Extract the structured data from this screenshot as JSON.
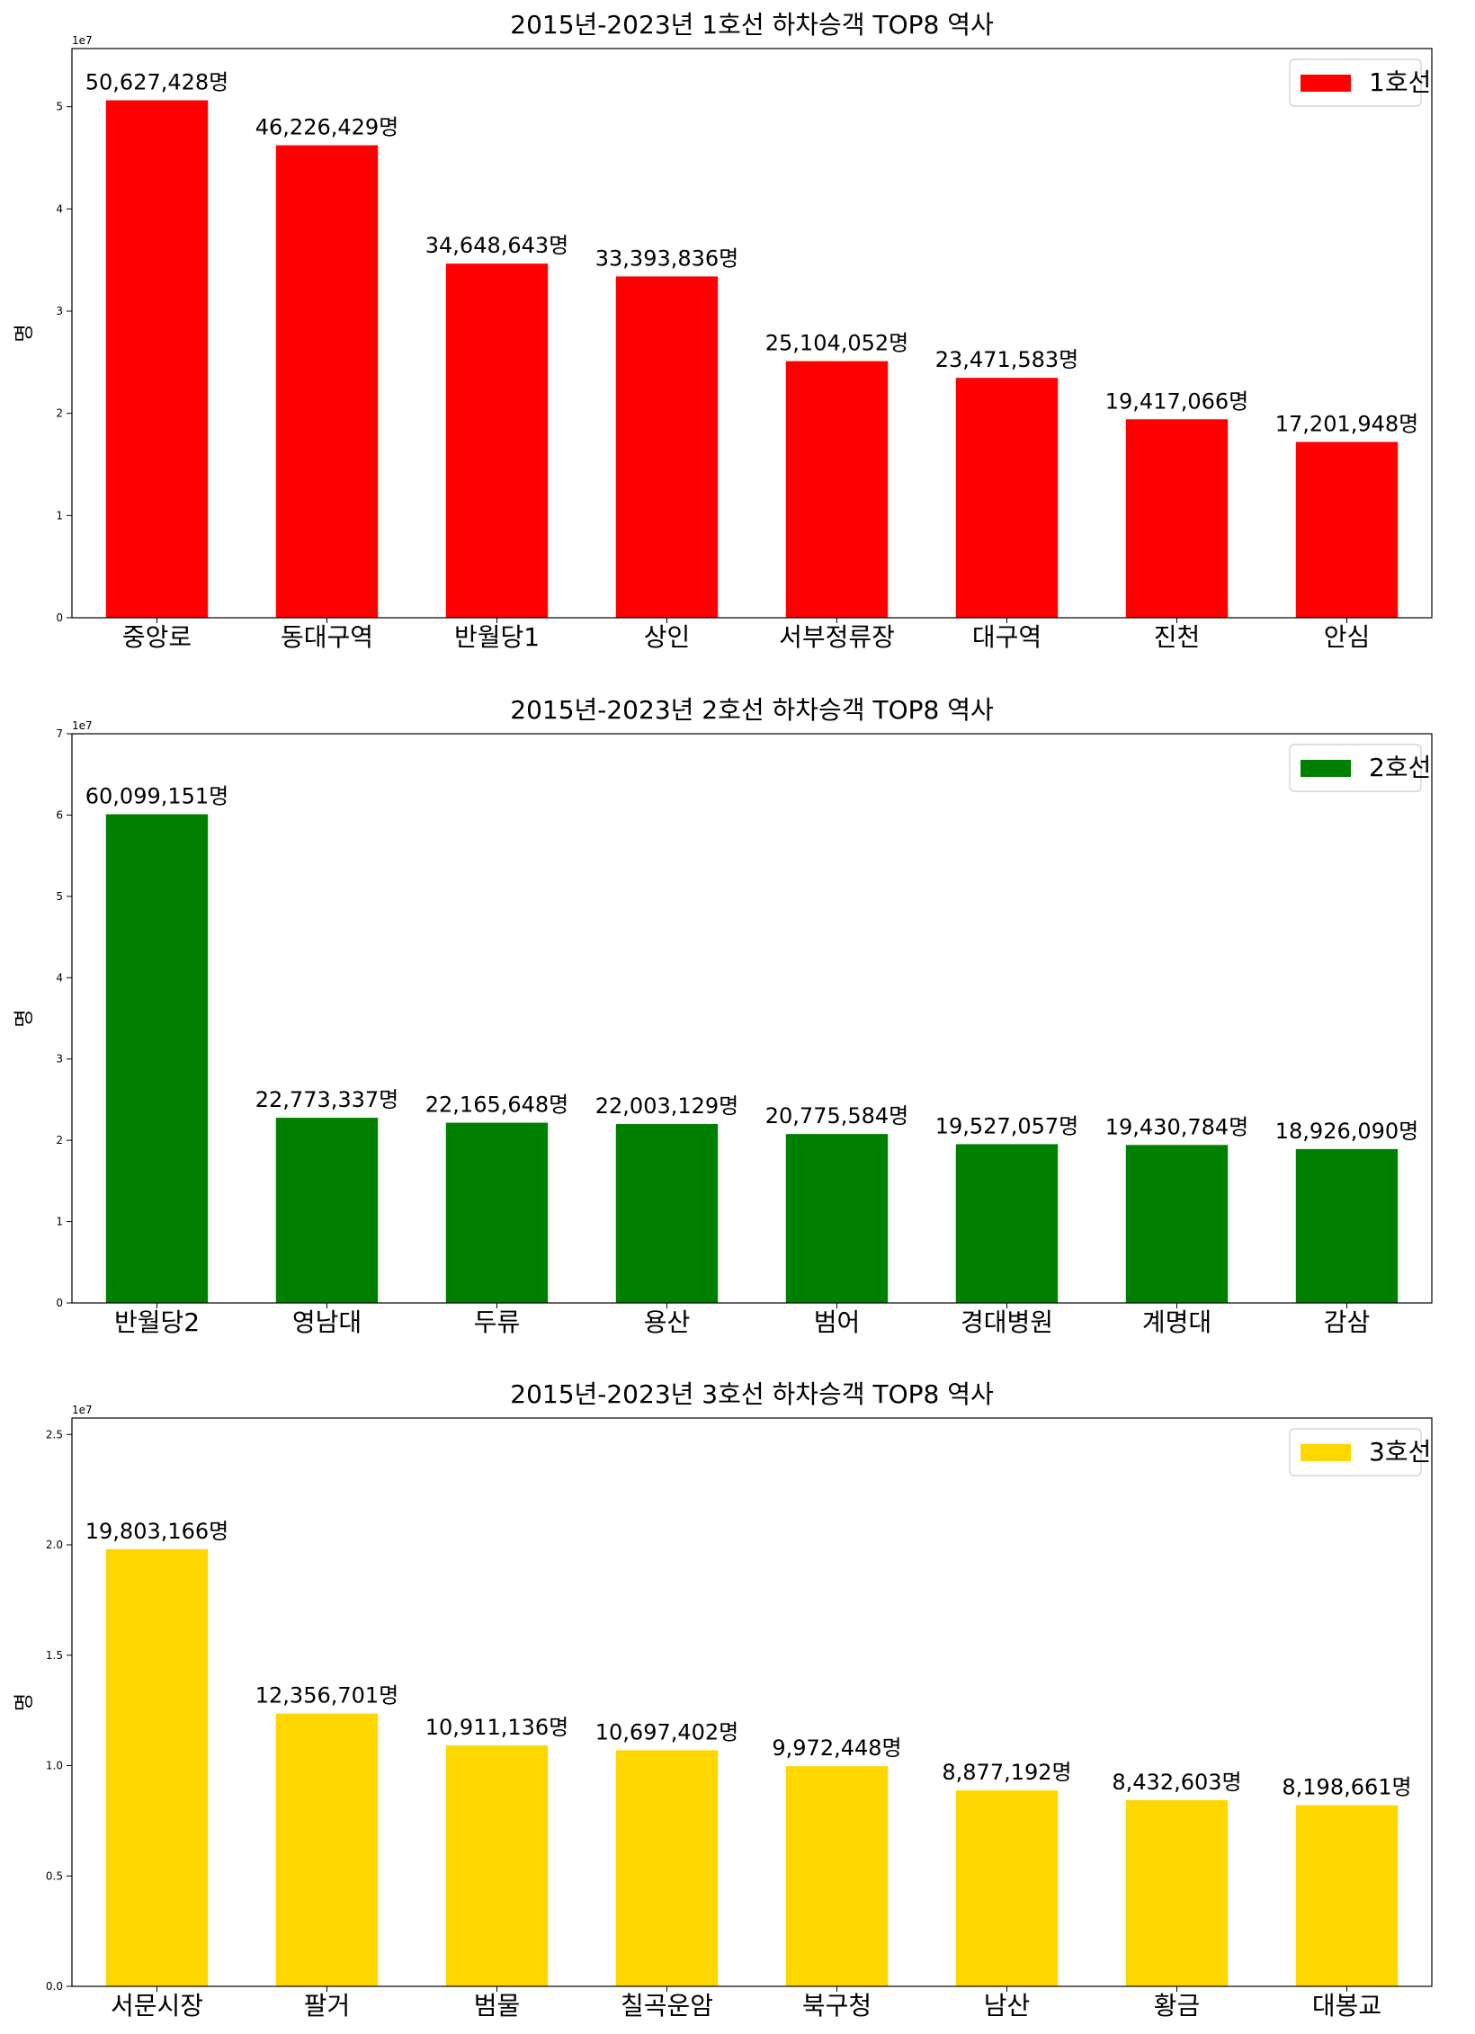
{
  "chart_data": [
    {
      "type": "bar",
      "title": "2015년-2023년 1호선 하차승객 TOP8 역사",
      "xlabel": "",
      "ylabel": "명",
      "offset_label": "1e7",
      "categories": [
        "중앙로",
        "동대구역",
        "반월당1",
        "상인",
        "서부정류장",
        "대구역",
        "진천",
        "안심"
      ],
      "series": [
        {
          "name": "1호선",
          "color": "#ff0000",
          "values": [
            50627428,
            46226429,
            34648643,
            33393836,
            25104052,
            23471583,
            19417066,
            17201948
          ]
        }
      ],
      "value_labels": [
        "50,627,428명",
        "46,226,429명",
        "34,648,643명",
        "33,393,836명",
        "25,104,052명",
        "23,471,583명",
        "19,417,066명",
        "17,201,948명"
      ],
      "ylim": [
        0,
        55690171
      ],
      "yticks": [
        0,
        10000000,
        20000000,
        30000000,
        40000000,
        50000000
      ],
      "ytick_labels": [
        "0",
        "1",
        "2",
        "3",
        "4",
        "5"
      ],
      "legend": "top-right",
      "grid": false
    },
    {
      "type": "bar",
      "title": "2015년-2023년 2호선 하차승객 TOP8 역사",
      "xlabel": "",
      "ylabel": "명",
      "offset_label": "1e7",
      "categories": [
        "반월당2",
        "영남대",
        "두류",
        "용산",
        "범어",
        "경대병원",
        "계명대",
        "감삼"
      ],
      "series": [
        {
          "name": "2호선",
          "color": "#008000",
          "values": [
            60099151,
            22773337,
            22165648,
            22003129,
            20775584,
            19527057,
            19430784,
            18926090
          ]
        }
      ],
      "value_labels": [
        "60,099,151명",
        "22,773,337명",
        "22,165,648명",
        "22,003,129명",
        "20,775,584명",
        "19,527,057명",
        "19,430,784명",
        "18,926,090명"
      ],
      "ylim": [
        0,
        70000000
      ],
      "yticks": [
        0,
        10000000,
        20000000,
        30000000,
        40000000,
        50000000,
        60000000,
        70000000
      ],
      "ytick_labels": [
        "0",
        "1",
        "2",
        "3",
        "4",
        "5",
        "6",
        "7"
      ],
      "legend": "top-right",
      "grid": false
    },
    {
      "type": "bar",
      "title": "2015년-2023년 3호선 하차승객 TOP8 역사",
      "xlabel": "",
      "ylabel": "명",
      "offset_label": "1e7",
      "categories": [
        "서문시장",
        "팔거",
        "범물",
        "칠곡운암",
        "북구청",
        "남산",
        "황금",
        "대봉교"
      ],
      "series": [
        {
          "name": "3호선",
          "color": "#ffd700",
          "values": [
            19803166,
            12356701,
            10911136,
            10697402,
            9972448,
            8877192,
            8432603,
            8198661
          ]
        }
      ],
      "value_labels": [
        "19,803,166명",
        "12,356,701명",
        "10,911,136명",
        "10,697,402명",
        "9,972,448명",
        "8,877,192명",
        "8,432,603명",
        "8,198,661명"
      ],
      "ylim": [
        0,
        25744116
      ],
      "yticks": [
        0,
        5000000,
        10000000,
        15000000,
        20000000,
        25000000
      ],
      "ytick_labels": [
        "0.0",
        "0.5",
        "1.0",
        "1.5",
        "2.0",
        "2.5"
      ],
      "legend": "top-right",
      "grid": false
    }
  ]
}
